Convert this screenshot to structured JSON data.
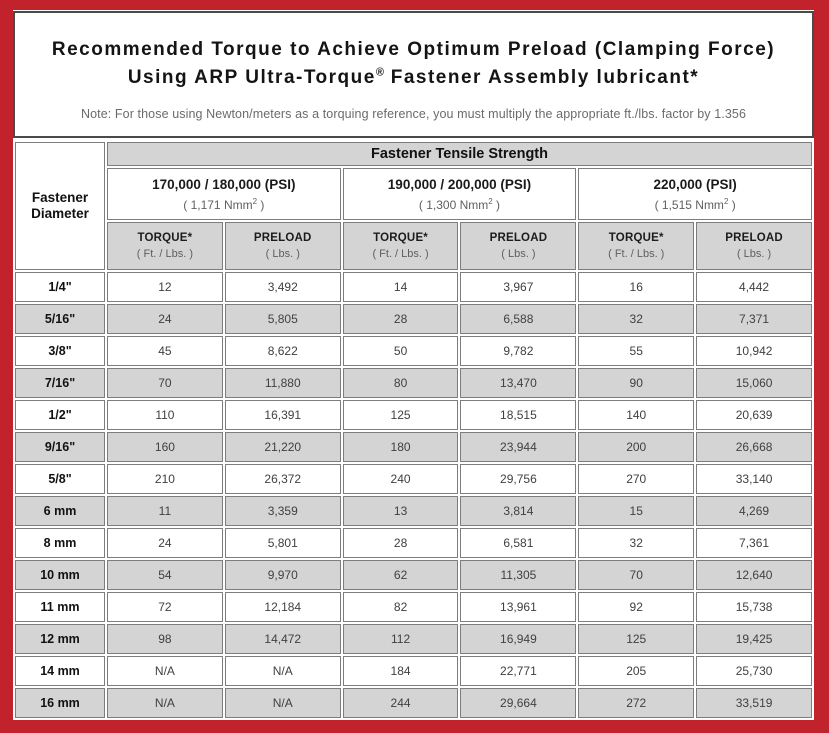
{
  "header": {
    "title_line1": "Recommended Torque to Achieve Optimum Preload (Clamping Force)",
    "title_line2_pre": "Using ARP Ultra-Torque",
    "title_line2_reg": "®",
    "title_line2_post": " Fastener Assembly lubricant*",
    "note": "Note: For those using Newton/meters as a torquing reference, you must multiply the appropriate ft./lbs. factor by 1.356"
  },
  "table": {
    "corner_header": "Fastener Diameter",
    "main_header": "Fastener Tensile Strength",
    "groups": [
      {
        "psi": "170,000 / 180,000 (PSI)",
        "nmm_pre": "( 1,171 Nmm",
        "nmm_sup": "2",
        "nmm_post": " )"
      },
      {
        "psi": "190,000 / 200,000 (PSI)",
        "nmm_pre": "( 1,300 Nmm",
        "nmm_sup": "2",
        "nmm_post": " )"
      },
      {
        "psi": "220,000 (PSI)",
        "nmm_pre": "( 1,515 Nmm",
        "nmm_sup": "2",
        "nmm_post": " )"
      }
    ],
    "col_headers": [
      {
        "label": "TORQUE*",
        "unit": "( Ft. / Lbs. )"
      },
      {
        "label": "PRELOAD",
        "unit": "( Lbs. )"
      },
      {
        "label": "TORQUE*",
        "unit": "( Ft. / Lbs. )"
      },
      {
        "label": "PRELOAD",
        "unit": "( Lbs. )"
      },
      {
        "label": "TORQUE*",
        "unit": "( Ft. / Lbs. )"
      },
      {
        "label": "PRELOAD",
        "unit": "( Lbs. )"
      }
    ],
    "rows": [
      [
        "1/4\"",
        "12",
        "3,492",
        "14",
        "3,967",
        "16",
        "4,442"
      ],
      [
        "5/16\"",
        "24",
        "5,805",
        "28",
        "6,588",
        "32",
        "7,371"
      ],
      [
        "3/8\"",
        "45",
        "8,622",
        "50",
        "9,782",
        "55",
        "10,942"
      ],
      [
        "7/16\"",
        "70",
        "11,880",
        "80",
        "13,470",
        "90",
        "15,060"
      ],
      [
        "1/2\"",
        "110",
        "16,391",
        "125",
        "18,515",
        "140",
        "20,639"
      ],
      [
        "9/16\"",
        "160",
        "21,220",
        "180",
        "23,944",
        "200",
        "26,668"
      ],
      [
        "5/8\"",
        "210",
        "26,372",
        "240",
        "29,756",
        "270",
        "33,140"
      ],
      [
        "6 mm",
        "11",
        "3,359",
        "13",
        "3,814",
        "15",
        "4,269"
      ],
      [
        "8 mm",
        "24",
        "5,801",
        "28",
        "6,581",
        "32",
        "7,361"
      ],
      [
        "10 mm",
        "54",
        "9,970",
        "62",
        "11,305",
        "70",
        "12,640"
      ],
      [
        "11 mm",
        "72",
        "12,184",
        "82",
        "13,961",
        "92",
        "15,738"
      ],
      [
        "12 mm",
        "98",
        "14,472",
        "112",
        "16,949",
        "125",
        "19,425"
      ],
      [
        "14 mm",
        "N/A",
        "N/A",
        "184",
        "22,771",
        "205",
        "25,730"
      ],
      [
        "16 mm",
        "N/A",
        "N/A",
        "244",
        "29,664",
        "272",
        "33,519"
      ]
    ]
  },
  "colors": {
    "frame_red": "#c1222b",
    "cell_gray": "#d4d4d4",
    "cell_border_gray": "#7d7d7d",
    "title_border_dark": "#4a4a4a"
  }
}
